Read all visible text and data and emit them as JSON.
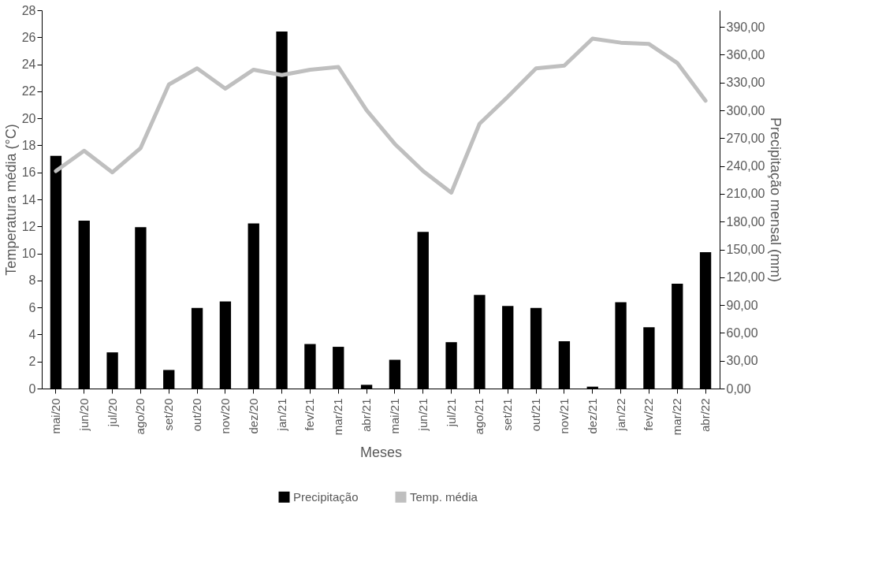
{
  "chart_data": {
    "type": "bar",
    "categories": [
      "mai/20",
      "jun/20",
      "jul/20",
      "ago/20",
      "set/20",
      "out/20",
      "nov/20",
      "dez/20",
      "jan/21",
      "fev/21",
      "mar/21",
      "abr/21",
      "mai/21",
      "jun/21",
      "jul/21",
      "ago/21",
      "set/21",
      "out/21",
      "nov/21",
      "dez/21",
      "jan/22",
      "fev/22",
      "mar/22",
      "abr/22"
    ],
    "series": [
      {
        "name": "Precipitação",
        "axis": "y2",
        "color": "#000000",
        "values": [
          251,
          181,
          39,
          174,
          20,
          87,
          94,
          178,
          385,
          48,
          45,
          4,
          31,
          169,
          50,
          101,
          89,
          87,
          51,
          2,
          93,
          66,
          113,
          147
        ]
      },
      {
        "name": "Temp. média",
        "type": "line",
        "color": "#bfbfbf",
        "values": [
          16.1,
          17.6,
          16.0,
          17.8,
          22.5,
          23.7,
          22.2,
          23.6,
          23.2,
          23.6,
          23.8,
          20.6,
          18.1,
          16.1,
          14.5,
          19.6,
          21.6,
          23.7,
          23.9,
          25.9,
          25.6,
          25.5,
          24.1,
          21.3
        ]
      }
    ],
    "xlabel": "Meses",
    "ylabel": "Temperatura média (°C)",
    "y2label": "Precipitação mensal (mm)",
    "ylim": [
      0,
      28
    ],
    "yticks": [
      0,
      2,
      4,
      6,
      8,
      10,
      12,
      14,
      16,
      18,
      20,
      22,
      24,
      26,
      28
    ],
    "y2lim": [
      0,
      408
    ],
    "y2ticks": [
      {
        "value": 0,
        "label": "0,00"
      },
      {
        "value": 30,
        "label": "30,00"
      },
      {
        "value": 60,
        "label": "60,00"
      },
      {
        "value": 90,
        "label": "90,00"
      },
      {
        "value": 120,
        "label": "120,00"
      },
      {
        "value": 150,
        "label": "150,00"
      },
      {
        "value": 180,
        "label": "180,00"
      },
      {
        "value": 210,
        "label": "210,00"
      },
      {
        "value": 240,
        "label": "240,00"
      },
      {
        "value": 270,
        "label": "270,00"
      },
      {
        "value": 300,
        "label": "300,00"
      },
      {
        "value": 330,
        "label": "330,00"
      },
      {
        "value": 360,
        "label": "360,00"
      },
      {
        "value": 390,
        "label": "390,00"
      }
    ],
    "legend": "bottom",
    "grid": false
  }
}
